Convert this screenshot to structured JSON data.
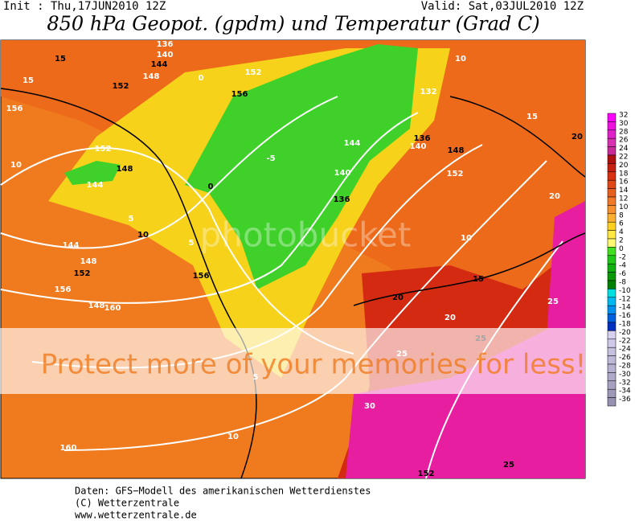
{
  "header": {
    "init": "Init : Thu,17JUN2010 12Z",
    "valid": "Valid: Sat,03JUL2010 12Z",
    "title": "850 hPa Geopot. (gpdm) und Temperatur (Grad C)"
  },
  "legend": {
    "labels": [
      "32",
      "30",
      "28",
      "26",
      "24",
      "22",
      "20",
      "18",
      "16",
      "14",
      "12",
      "10",
      "8",
      "6",
      "4",
      "2",
      "0",
      "-2",
      "-4",
      "-6",
      "-8",
      "-10",
      "-12",
      "-14",
      "-16",
      "-18",
      "-20",
      "-22",
      "-24",
      "-26",
      "-28",
      "-30",
      "-32",
      "-34",
      "-36"
    ]
  },
  "map": {
    "labels": [
      "15",
      "15",
      "156",
      "152",
      "10",
      "152",
      "148",
      "144",
      "5",
      "10",
      "144",
      "148",
      "152",
      "156",
      "160",
      "156",
      "136",
      "140",
      "144",
      "148",
      "152",
      "156",
      "0",
      "-5",
      "0",
      "5",
      "132",
      "136",
      "140",
      "144",
      "148",
      "152",
      "140",
      "136",
      "10",
      "15",
      "20",
      "20",
      "25",
      "20",
      "25",
      "30",
      "25",
      "5",
      "10",
      "15",
      "160",
      "148",
      "152",
      "20",
      "10",
      "25"
    ]
  },
  "watermark": {
    "brand": "photobucket",
    "slogan": "Protect more of your memories for less!"
  },
  "footer": {
    "source": "Daten: GFS−Modell des amerikanischen Wetterdienstes",
    "copyright": "(C) Wetterzentrale",
    "url": "www.wetterzentrale.de"
  }
}
